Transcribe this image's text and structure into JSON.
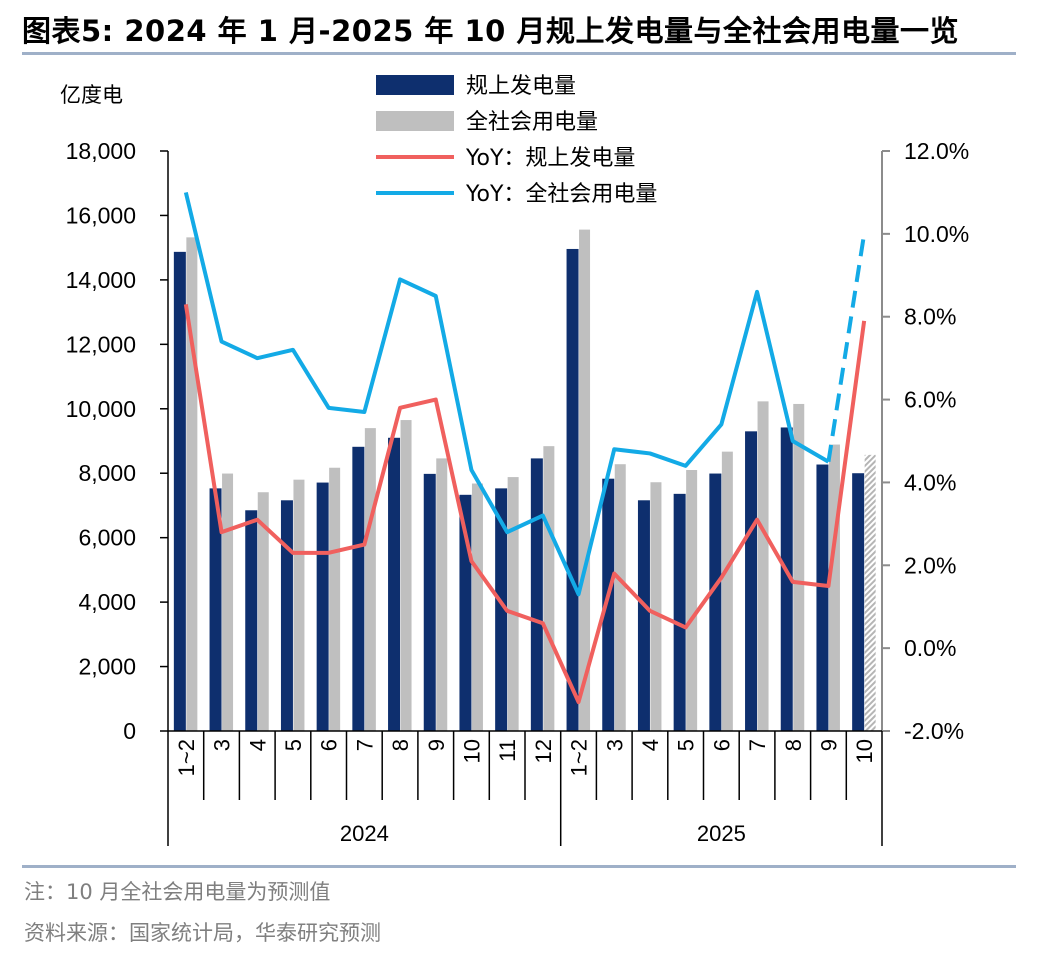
{
  "title": "图表5:  2024 年 1 月-2025 年 10 月规上发电量与全社会用电量一览",
  "notes": {
    "note": "注：10 月全社会用电量为预测值",
    "source": "资料来源：国家统计局，华泰研究预测"
  },
  "colors": {
    "bar_industrial": "#0e2f6e",
    "bar_society": "#bfbfbf",
    "line_industrial_yoy": "#f0605e",
    "line_society_yoy": "#13aae6",
    "axis": "#000000",
    "right_axis": "#8c8c8c"
  },
  "chart_data": {
    "type": "bar+line",
    "title": "2024 年 1 月-2025 年 10 月规上发电量与全社会用电量一览",
    "left_axis": {
      "label": "亿度电",
      "range": [
        0,
        18000
      ],
      "ticks": [
        "0",
        "2,000",
        "4,000",
        "6,000",
        "8,000",
        "10,000",
        "12,000",
        "14,000",
        "16,000",
        "18,000"
      ]
    },
    "right_axis": {
      "range": [
        -2.0,
        12.0
      ],
      "ticks": [
        "-2.0%",
        "0.0%",
        "2.0%",
        "4.0%",
        "6.0%",
        "8.0%",
        "10.0%",
        "12.0%"
      ]
    },
    "categories": [
      "1~2",
      "3",
      "4",
      "5",
      "6",
      "7",
      "8",
      "9",
      "10",
      "11",
      "12",
      "1~2",
      "3",
      "4",
      "5",
      "6",
      "7",
      "8",
      "9",
      "10"
    ],
    "years": [
      {
        "label": "2024",
        "start": 0,
        "end": 10
      },
      {
        "label": "2025",
        "start": 11,
        "end": 19
      }
    ],
    "series": [
      {
        "name": "规上发电量",
        "type": "bar",
        "axis": "left",
        "values": [
          14870,
          7530,
          6850,
          7160,
          7710,
          8820,
          9100,
          7980,
          7330,
          7530,
          8460,
          14960,
          7830,
          7160,
          7360,
          7990,
          9300,
          9420,
          8270,
          8000
        ]
      },
      {
        "name": "全社会用电量",
        "type": "bar",
        "axis": "left",
        "forecast_index": 19,
        "values": [
          15320,
          7990,
          7410,
          7800,
          8170,
          9400,
          9650,
          8460,
          7680,
          7880,
          8840,
          15560,
          8280,
          7720,
          8100,
          8670,
          10230,
          10150,
          8890,
          8570
        ]
      },
      {
        "name": "YoY：规上发电量",
        "type": "line",
        "axis": "right",
        "values": [
          8.3,
          2.8,
          3.1,
          2.3,
          2.3,
          2.5,
          5.8,
          6.0,
          2.1,
          0.9,
          0.6,
          -1.3,
          1.8,
          0.9,
          0.5,
          1.7,
          3.1,
          1.6,
          1.5,
          7.9
        ]
      },
      {
        "name": "YoY：全社会用电量",
        "type": "line",
        "axis": "right",
        "forecast_from_index": 18,
        "values": [
          11.0,
          7.4,
          7.0,
          7.2,
          5.8,
          5.7,
          8.9,
          8.5,
          4.3,
          2.8,
          3.2,
          1.3,
          4.8,
          4.7,
          4.4,
          5.4,
          8.6,
          5.0,
          4.5,
          10.0
        ]
      }
    ],
    "legend_position": "top-center"
  }
}
